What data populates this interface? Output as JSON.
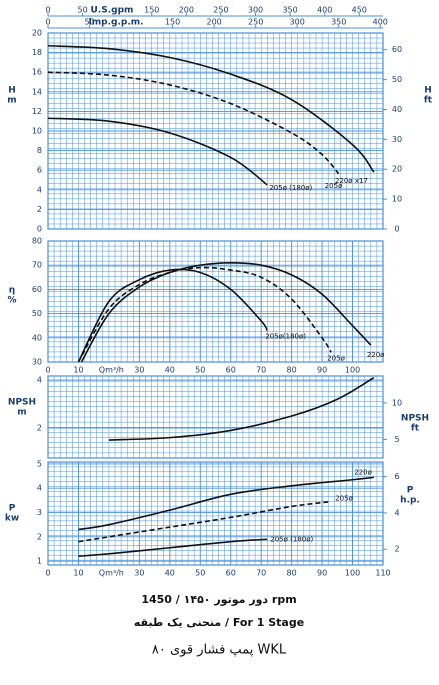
{
  "chart_data": [
    {
      "type": "line",
      "y_label": "H",
      "y_unit": "m",
      "y2_label": "H",
      "y2_unit": "ft",
      "xlim": [
        0,
        110
      ],
      "ylim": [
        0,
        20
      ],
      "yticks": [
        0,
        2,
        4,
        6,
        8,
        10,
        12,
        14,
        16,
        18,
        20
      ],
      "y2lim": [
        0,
        65.6
      ],
      "y2ticks": [
        0,
        10,
        20,
        30,
        40,
        50,
        60
      ],
      "grid": true,
      "grid_color": "#4a90d9",
      "top_axes": [
        {
          "label": "U.S.gpm",
          "lim": [
            0,
            484.3
          ],
          "ticks": [
            0,
            50,
            150,
            200,
            250,
            300,
            350,
            400,
            450
          ]
        },
        {
          "label": "Imp.g.p.m.",
          "lim": [
            0,
            403.3
          ],
          "ticks": [
            0,
            50,
            150,
            200,
            250,
            300,
            350,
            400
          ]
        }
      ],
      "series": [
        {
          "name": "220ø x17",
          "color": "#111111",
          "dash": false,
          "x": [
            0,
            20,
            40,
            60,
            80,
            100,
            107
          ],
          "values": [
            18.7,
            18.4,
            17.5,
            15.8,
            13.2,
            8.6,
            5.8
          ]
        },
        {
          "name": "205ø",
          "color": "#111111",
          "dash": true,
          "x": [
            0,
            20,
            40,
            60,
            80,
            90,
            96
          ],
          "values": [
            16.0,
            15.7,
            14.7,
            12.8,
            9.8,
            7.6,
            5.4
          ]
        },
        {
          "name": "205ø (180ø)",
          "color": "#111111",
          "dash": false,
          "x": [
            0,
            20,
            40,
            60,
            72
          ],
          "values": [
            11.3,
            11.0,
            9.8,
            7.3,
            4.5
          ]
        }
      ]
    },
    {
      "type": "line",
      "y_label": "η",
      "y_unit": "%",
      "x_label": "Qm³/h",
      "xlim": [
        0,
        110
      ],
      "xticks": [
        0,
        10,
        30,
        40,
        50,
        60,
        70,
        80,
        90,
        100
      ],
      "ylim": [
        30,
        80
      ],
      "yticks": [
        30,
        40,
        50,
        60,
        70,
        80
      ],
      "grid": true,
      "grid_color": "#4a90d9",
      "series": [
        {
          "name": "220ø",
          "color": "#111111",
          "dash": false,
          "x": [
            11,
            20,
            30,
            40,
            50,
            60,
            70,
            80,
            90,
            100,
            106
          ],
          "values": [
            30,
            50,
            61,
            67,
            70,
            71,
            70,
            66,
            58,
            45,
            37
          ]
        },
        {
          "name": "205ø",
          "color": "#111111",
          "dash": true,
          "x": [
            10,
            20,
            30,
            40,
            50,
            60,
            70,
            80,
            90,
            93
          ],
          "values": [
            30,
            52,
            62,
            67,
            69,
            68,
            65,
            56,
            40,
            34
          ]
        },
        {
          "name": "205ø(180ø)",
          "color": "#111111",
          "dash": false,
          "x": [
            10,
            20,
            30,
            40,
            50,
            60,
            70,
            72
          ],
          "values": [
            30,
            55,
            64,
            68,
            67,
            60,
            47,
            43
          ]
        }
      ]
    },
    {
      "type": "line",
      "y_label": "NPSH",
      "y_unit": "m",
      "y2_label": "NPSH",
      "y2_unit": "ft",
      "xlim": [
        0,
        110
      ],
      "ylim": [
        0.75,
        4.17
      ],
      "yticks": [
        2,
        4
      ],
      "y2lim": [
        2.46,
        13.68
      ],
      "y2ticks": [
        5,
        10
      ],
      "grid": true,
      "grid_color": "#4a90d9",
      "series": [
        {
          "color": "#111111",
          "dash": false,
          "x": [
            20,
            40,
            60,
            80,
            95,
            107
          ],
          "values": [
            1.5,
            1.6,
            1.9,
            2.5,
            3.2,
            4.1
          ]
        }
      ]
    },
    {
      "type": "line",
      "y_label": "P",
      "y_unit": "kw",
      "y2_label": "P",
      "y2_unit": "h.p.",
      "x_label": "Qm³/h",
      "xlim": [
        0,
        110
      ],
      "xticks": [
        0,
        10,
        30,
        40,
        50,
        60,
        70,
        80,
        90,
        100,
        110
      ],
      "ylim": [
        0.84,
        5.08
      ],
      "yticks": [
        1,
        2,
        3,
        4,
        5
      ],
      "y2lim": [
        1.13,
        6.81
      ],
      "y2ticks": [
        2,
        4,
        6
      ],
      "grid": true,
      "grid_color": "#4a90d9",
      "series": [
        {
          "name": "220ø",
          "color": "#111111",
          "dash": false,
          "x": [
            10,
            20,
            40,
            60,
            80,
            100,
            107
          ],
          "values": [
            2.3,
            2.5,
            3.1,
            3.75,
            4.1,
            4.35,
            4.45
          ]
        },
        {
          "name": "205ø",
          "color": "#111111",
          "dash": true,
          "x": [
            10,
            20,
            40,
            60,
            80,
            93
          ],
          "values": [
            1.8,
            2.0,
            2.4,
            2.8,
            3.25,
            3.45
          ]
        },
        {
          "name": "205ø (180ø)",
          "color": "#111111",
          "dash": false,
          "x": [
            10,
            20,
            40,
            60,
            72
          ],
          "values": [
            1.2,
            1.3,
            1.55,
            1.8,
            1.9
          ]
        }
      ]
    }
  ],
  "footer": {
    "lines": [
      "دور موتور ۱۴۵۰ / 1450 rpm",
      "منحنی یک طبقه / For 1 Stage",
      "پمپ فشار قوی ۸۰ WKL"
    ]
  }
}
